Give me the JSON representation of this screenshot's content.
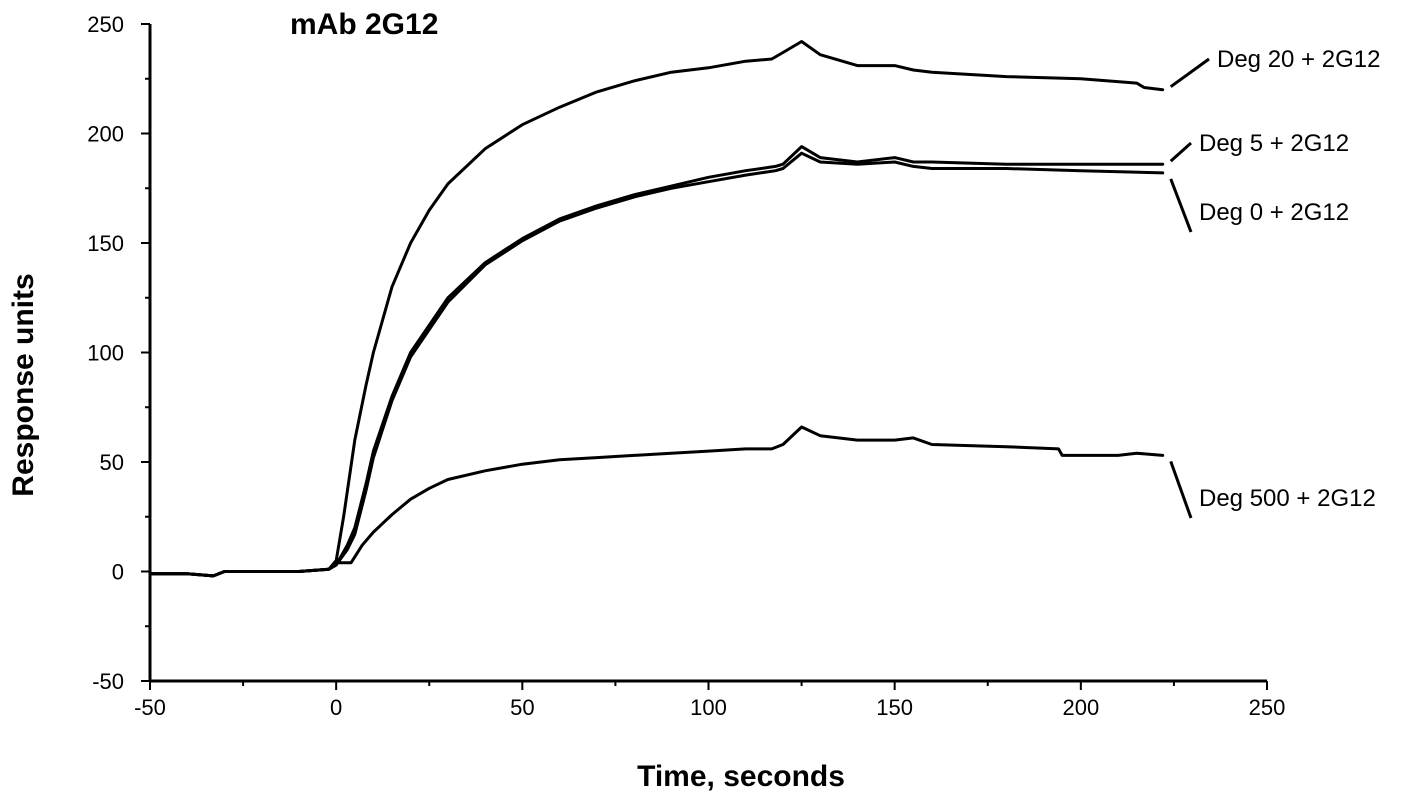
{
  "chart_data": {
    "type": "line",
    "title": "mAb 2G12",
    "xlabel": "Time, seconds",
    "ylabel": "Response units",
    "xlim": [
      -50,
      250
    ],
    "ylim": [
      -50,
      250
    ],
    "x_ticks": [
      -50,
      0,
      50,
      100,
      150,
      200,
      250
    ],
    "y_ticks": [
      -50,
      0,
      50,
      100,
      150,
      200,
      250
    ],
    "grid": false,
    "legend": "inline labels at right",
    "line_color": "#000000",
    "series": [
      {
        "name": "Deg 20 + 2G12",
        "x": [
          -50,
          -40,
          -33,
          -30,
          -20,
          -10,
          -2,
          0,
          2,
          5,
          8,
          10,
          15,
          20,
          25,
          30,
          40,
          50,
          60,
          70,
          80,
          90,
          100,
          110,
          117,
          120,
          125,
          130,
          140,
          150,
          155,
          160,
          180,
          200,
          215,
          217,
          222
        ],
        "values": [
          -1,
          -1,
          -2,
          0,
          0,
          0,
          1,
          5,
          25,
          60,
          85,
          100,
          130,
          150,
          165,
          177,
          193,
          204,
          212,
          219,
          224,
          228,
          230,
          233,
          234,
          237,
          242,
          236,
          231,
          231,
          229,
          228,
          226,
          225,
          223,
          221,
          220
        ]
      },
      {
        "name": "Deg 5 + 2G12",
        "x": [
          -50,
          -40,
          -33,
          -30,
          -20,
          -10,
          -2,
          0,
          3,
          5,
          8,
          10,
          15,
          20,
          30,
          40,
          50,
          60,
          70,
          80,
          90,
          100,
          110,
          118,
          120,
          125,
          130,
          140,
          150,
          155,
          160,
          180,
          200,
          222
        ],
        "values": [
          -1,
          -1,
          -2,
          0,
          0,
          0,
          1,
          3,
          12,
          20,
          40,
          55,
          80,
          100,
          125,
          141,
          152,
          161,
          167,
          172,
          176,
          180,
          183,
          185,
          186,
          194,
          189,
          187,
          189,
          187,
          187,
          186,
          186,
          186
        ]
      },
      {
        "name": "Deg 0 + 2G12",
        "x": [
          -50,
          -40,
          -33,
          -30,
          -20,
          -10,
          -2,
          0,
          3,
          5,
          8,
          10,
          15,
          20,
          30,
          40,
          50,
          60,
          70,
          80,
          90,
          100,
          110,
          118,
          120,
          125,
          130,
          140,
          150,
          155,
          160,
          180,
          200,
          222
        ],
        "values": [
          -1,
          -1,
          -2,
          0,
          0,
          0,
          1,
          3,
          10,
          17,
          37,
          52,
          78,
          98,
          123,
          140,
          151,
          160,
          166,
          171,
          175,
          178,
          181,
          183,
          184,
          191,
          187,
          186,
          187,
          185,
          184,
          184,
          183,
          182
        ]
      },
      {
        "name": "Deg 500 + 2G12",
        "x": [
          -50,
          -40,
          -33,
          -30,
          -20,
          -10,
          -2,
          0,
          2,
          4,
          7,
          10,
          15,
          20,
          25,
          30,
          40,
          50,
          60,
          70,
          80,
          90,
          100,
          110,
          117,
          120,
          125,
          130,
          140,
          150,
          155,
          160,
          180,
          194,
          195,
          200,
          210,
          215,
          222
        ],
        "values": [
          -1,
          -1,
          -2,
          0,
          0,
          0,
          1,
          4,
          4,
          4,
          12,
          18,
          26,
          33,
          38,
          42,
          46,
          49,
          51,
          52,
          53,
          54,
          55,
          56,
          56,
          58,
          66,
          62,
          60,
          60,
          61,
          58,
          57,
          56,
          53,
          53,
          53,
          54,
          53
        ]
      }
    ]
  }
}
